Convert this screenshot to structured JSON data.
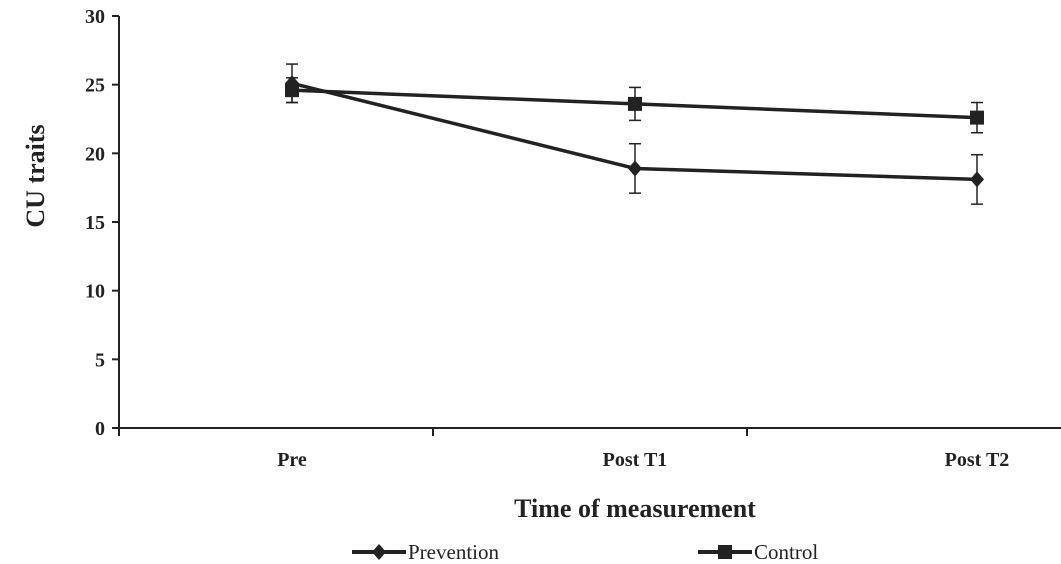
{
  "chart_data": {
    "type": "line",
    "title": "",
    "xlabel": "Time of measurement",
    "ylabel": "CU traits",
    "categories": [
      "Pre",
      "Post T1",
      "Post T2"
    ],
    "ylim": [
      0,
      30
    ],
    "yticks": [
      "0",
      "5",
      "10",
      "15",
      "20",
      "25",
      "30"
    ],
    "grid": false,
    "legend_position": "bottom",
    "series": [
      {
        "name": "Prevention",
        "marker": "diamond",
        "values": [
          25.1,
          18.9,
          18.1
        ],
        "error": [
          1.4,
          1.8,
          1.8
        ]
      },
      {
        "name": "Control",
        "marker": "square",
        "values": [
          24.6,
          23.6,
          22.6
        ],
        "error": [
          0.9,
          1.2,
          1.1
        ]
      }
    ]
  },
  "colors": {
    "line": "#222222",
    "background": "#ffffff"
  }
}
